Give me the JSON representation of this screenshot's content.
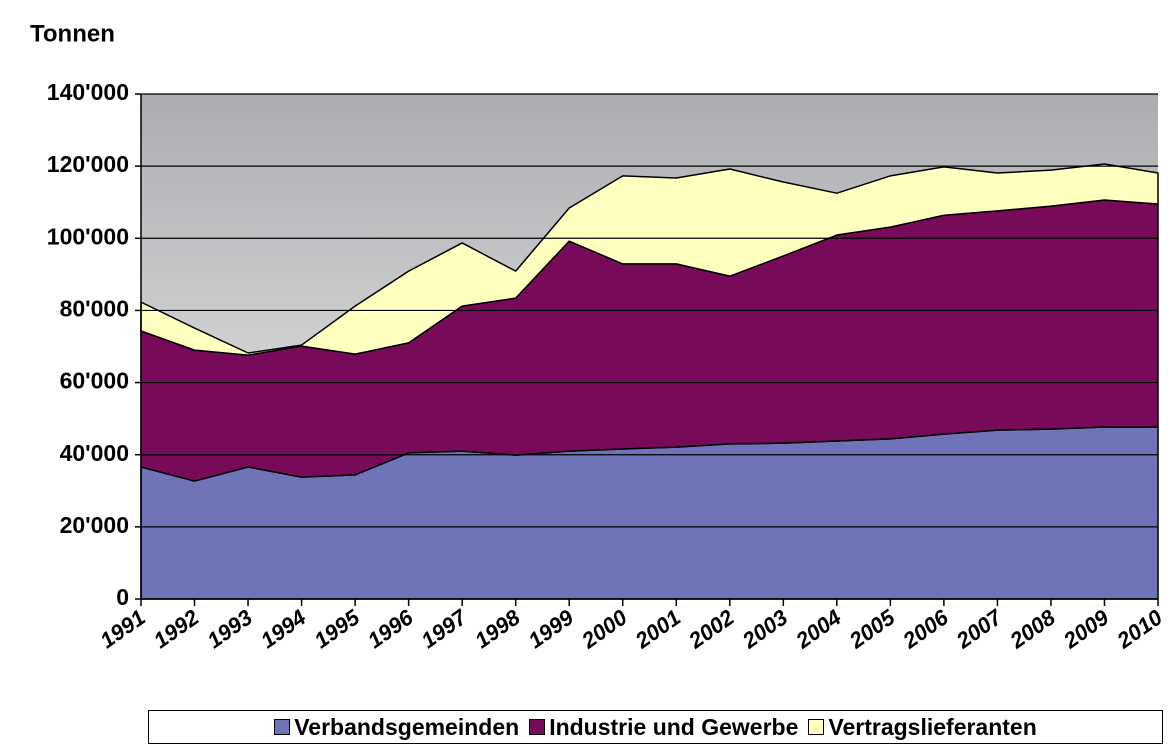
{
  "chart_data": {
    "type": "stacked-area",
    "title": "Tonnen",
    "categories": [
      "1991",
      "1992",
      "1993",
      "1994",
      "1995",
      "1996",
      "1997",
      "1998",
      "1999",
      "2000",
      "2001",
      "2002",
      "2003",
      "2004",
      "2005",
      "2006",
      "2007",
      "2008",
      "2009",
      "2010"
    ],
    "series": [
      {
        "name": "Verbandsgemeinden",
        "color": "#6f74b8",
        "values": [
          36600,
          32700,
          36600,
          33800,
          34400,
          40500,
          41000,
          39900,
          41000,
          41600,
          42100,
          43000,
          43200,
          43800,
          44400,
          45700,
          46800,
          47100,
          47700,
          47700
        ]
      },
      {
        "name": "Industrie und Gewerbe",
        "color": "#780a5a",
        "values": [
          37700,
          36300,
          31000,
          36300,
          33500,
          30500,
          40200,
          43500,
          58200,
          51300,
          50800,
          46500,
          51900,
          57100,
          58700,
          60700,
          60800,
          61800,
          62900,
          61800
        ]
      },
      {
        "name": "Vertragslieferanten",
        "color": "#ffffc0",
        "values": [
          8000,
          6100,
          600,
          300,
          13300,
          19900,
          17500,
          7500,
          9200,
          24400,
          23800,
          29700,
          20500,
          11600,
          14200,
          13400,
          10500,
          10000,
          10000,
          8600
        ]
      }
    ],
    "ylim": [
      0,
      140000
    ],
    "yticks": [
      0,
      {
        "value": 20000,
        "label": "20'000"
      },
      {
        "value": 40000,
        "label": "40'000"
      },
      {
        "value": 60000,
        "label": "60'000"
      },
      {
        "value": 80000,
        "label": "80'000"
      },
      {
        "value": 100000,
        "label": "100'000"
      },
      {
        "value": 120000,
        "label": "120'000"
      },
      {
        "value": 140000,
        "label": "140'000"
      }
    ],
    "grid": true
  }
}
